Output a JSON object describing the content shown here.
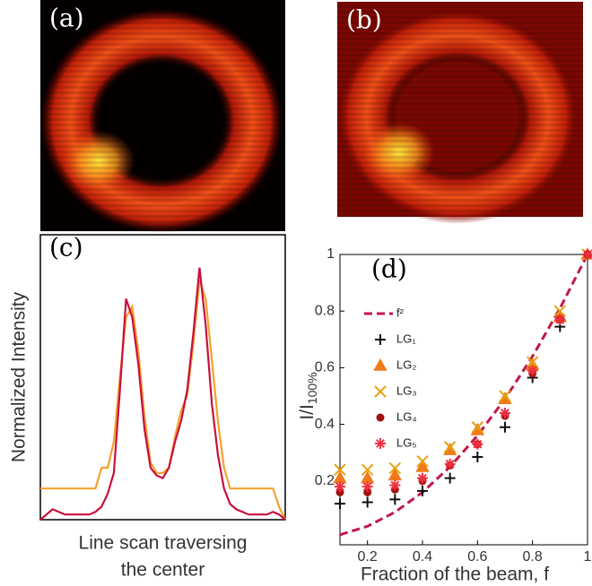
{
  "images": [
    {
      "label": "(a)"
    },
    {
      "label": "(b)"
    }
  ],
  "chart_data": [
    {
      "type": "line",
      "label": "(c)",
      "ylabel": "Normalized Intensity",
      "xlabel": [
        "Line scan traversing",
        "the center"
      ],
      "x": [
        0,
        2.5,
        5,
        7.5,
        10,
        12.5,
        15,
        17.5,
        20,
        22.5,
        25,
        27.5,
        30,
        32.5,
        35,
        37.5,
        40,
        42.5,
        45,
        47.5,
        50,
        52.5,
        55,
        57.5,
        60,
        62.5,
        65,
        67.5,
        70,
        72.5,
        75,
        77.5,
        80,
        82.5,
        85,
        87.5,
        90,
        92.5,
        95,
        97.5,
        100
      ],
      "xlim": [
        0,
        100
      ],
      "ylim": [
        0,
        1
      ],
      "series": [
        {
          "color": "#f5a030",
          "values": [
            0.12,
            0.12,
            0.12,
            0.12,
            0.12,
            0.12,
            0.12,
            0.12,
            0.12,
            0.12,
            0.2,
            0.2,
            0.3,
            0.55,
            0.78,
            0.82,
            0.65,
            0.4,
            0.22,
            0.18,
            0.18,
            0.2,
            0.32,
            0.42,
            0.48,
            0.68,
            0.92,
            0.85,
            0.62,
            0.38,
            0.2,
            0.12,
            0.12,
            0.12,
            0.12,
            0.12,
            0.12,
            0.12,
            0.12,
            0.05,
            0
          ]
        },
        {
          "color": "#c8103c",
          "values": [
            0,
            0.02,
            0.04,
            0.03,
            0.02,
            0.02,
            0.02,
            0.02,
            0.02,
            0.03,
            0.05,
            0.1,
            0.18,
            0.5,
            0.85,
            0.78,
            0.6,
            0.35,
            0.2,
            0.17,
            0.16,
            0.2,
            0.3,
            0.38,
            0.5,
            0.72,
            0.97,
            0.75,
            0.45,
            0.25,
            0.12,
            0.06,
            0.04,
            0.03,
            0.02,
            0.02,
            0.02,
            0.02,
            0.03,
            0.02,
            0
          ]
        }
      ]
    },
    {
      "type": "scatter",
      "label": "(d)",
      "ylabel": "I/I",
      "ylabel_sub": "100%",
      "xlabel": "Fraction of the beam, f",
      "x": [
        0.1,
        0.2,
        0.3,
        0.4,
        0.5,
        0.6,
        0.7,
        0.8,
        0.9,
        1
      ],
      "xlim": [
        0.1,
        1
      ],
      "ylim": [
        0,
        1
      ],
      "xticks": [
        0.2,
        0.4,
        0.6,
        0.8,
        1
      ],
      "yticks": [
        0.2,
        0.4,
        0.6,
        0.8,
        1
      ],
      "legend": "upper left",
      "series": [
        {
          "name": "f²",
          "color": "#c0184a",
          "style": "dashed",
          "values": [
            0.01,
            0.04,
            0.09,
            0.16,
            0.25,
            0.36,
            0.49,
            0.64,
            0.81,
            1
          ]
        },
        {
          "name": "LG₁",
          "color": "#111111",
          "marker": "plus",
          "values": [
            0.12,
            0.125,
            0.135,
            0.165,
            0.21,
            0.285,
            0.39,
            0.565,
            0.745,
            1
          ]
        },
        {
          "name": "LG₂",
          "color": "#f07a1a",
          "marker": "triangle",
          "values": [
            0.21,
            0.21,
            0.22,
            0.25,
            0.31,
            0.38,
            0.49,
            0.61,
            0.78,
            1
          ]
        },
        {
          "name": "LG₃",
          "color": "#e8a010",
          "marker": "x",
          "values": [
            0.24,
            0.24,
            0.245,
            0.27,
            0.32,
            0.39,
            0.5,
            0.62,
            0.8,
            1
          ]
        },
        {
          "name": "LG₄",
          "color": "#a01010",
          "marker": "circle",
          "values": [
            0.16,
            0.16,
            0.17,
            0.2,
            0.255,
            0.33,
            0.43,
            0.58,
            0.77,
            1
          ]
        },
        {
          "name": "LG₅",
          "color": "#f03040",
          "marker": "asterisk",
          "values": [
            0.18,
            0.18,
            0.185,
            0.21,
            0.26,
            0.33,
            0.44,
            0.59,
            0.77,
            1
          ]
        }
      ]
    }
  ]
}
